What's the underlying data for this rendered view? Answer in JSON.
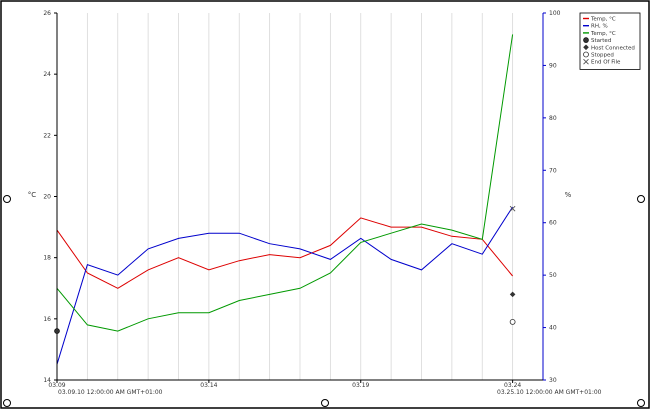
{
  "chart_data": {
    "type": "line",
    "x_axis": {
      "ticks": [
        "03.09",
        "03.14",
        "03.19",
        "03.24"
      ],
      "start_label": "03.09.10 12:00:00 AM GMT+01:00",
      "end_label": "03.25.10 12:00:00 AM GMT+01:00",
      "range": [
        "2010-03-09",
        "2010-03-25"
      ]
    },
    "left_axis": {
      "label": "°C",
      "ticks": [
        14,
        16,
        18,
        20,
        22,
        24,
        26
      ],
      "range": [
        14,
        26
      ]
    },
    "right_axis": {
      "label": "%",
      "ticks": [
        30,
        40,
        50,
        60,
        70,
        80,
        90,
        100
      ],
      "range": [
        30,
        100
      ]
    },
    "grid": "vertical",
    "legend_position": "top-right",
    "legend": [
      {
        "label": "Temp, °C",
        "marker": "line",
        "color": "#dd0000"
      },
      {
        "label": "RH, %",
        "marker": "line",
        "color": "#0000cc"
      },
      {
        "label": "Temp, °C",
        "marker": "line",
        "color": "#009900"
      },
      {
        "label": "Started",
        "marker": "filled-circle"
      },
      {
        "label": "Host Connected",
        "marker": "diamond"
      },
      {
        "label": "Stopped",
        "marker": "open-circle"
      },
      {
        "label": "End Of File",
        "marker": "cross"
      }
    ],
    "series": [
      {
        "name": "Temp, °C",
        "axis": "left",
        "color": "#dd0000",
        "x": [
          "2010-03-09",
          "2010-03-10",
          "2010-03-11",
          "2010-03-12",
          "2010-03-13",
          "2010-03-14",
          "2010-03-15",
          "2010-03-16",
          "2010-03-17",
          "2010-03-18",
          "2010-03-19",
          "2010-03-20",
          "2010-03-21",
          "2010-03-22",
          "2010-03-23",
          "2010-03-24"
        ],
        "y": [
          18.9,
          17.5,
          17.0,
          17.6,
          18.0,
          17.6,
          17.9,
          18.1,
          18.0,
          18.4,
          19.3,
          19.0,
          19.0,
          18.7,
          18.6,
          17.4
        ]
      },
      {
        "name": "RH, %",
        "axis": "right",
        "color": "#0000cc",
        "x": [
          "2010-03-09",
          "2010-03-10",
          "2010-03-11",
          "2010-03-12",
          "2010-03-13",
          "2010-03-14",
          "2010-03-15",
          "2010-03-16",
          "2010-03-17",
          "2010-03-18",
          "2010-03-19",
          "2010-03-20",
          "2010-03-21",
          "2010-03-22",
          "2010-03-23",
          "2010-03-24"
        ],
        "y": [
          33,
          52,
          50,
          55,
          57,
          58,
          58,
          56,
          55,
          53,
          57,
          53,
          51,
          56,
          54,
          63
        ]
      },
      {
        "name": "Temp, °C",
        "axis": "left",
        "color": "#009900",
        "x": [
          "2010-03-09",
          "2010-03-10",
          "2010-03-11",
          "2010-03-12",
          "2010-03-13",
          "2010-03-14",
          "2010-03-15",
          "2010-03-16",
          "2010-03-17",
          "2010-03-18",
          "2010-03-19",
          "2010-03-20",
          "2010-03-21",
          "2010-03-22",
          "2010-03-23",
          "2010-03-24"
        ],
        "y": [
          17.0,
          15.8,
          15.6,
          16.0,
          16.2,
          16.2,
          16.6,
          16.8,
          17.0,
          17.5,
          18.5,
          18.8,
          19.1,
          18.9,
          18.6,
          25.3
        ]
      }
    ],
    "events": [
      {
        "label": "Started",
        "marker": "filled-circle",
        "x": "2010-03-09",
        "value": 15.6
      },
      {
        "label": "Host Connected",
        "marker": "diamond",
        "x": "2010-03-24",
        "value": 16.8
      },
      {
        "label": "Stopped",
        "marker": "open-circle",
        "x": "2010-03-24",
        "value": 15.9
      },
      {
        "label": "End Of File",
        "marker": "cross",
        "x": "2010-03-24",
        "value": 19.6
      }
    ]
  },
  "colors": {
    "temp1": "#dd0000",
    "rh": "#0000cc",
    "temp2": "#009900",
    "frame": "#000000",
    "grid": "#d8d8d8"
  }
}
